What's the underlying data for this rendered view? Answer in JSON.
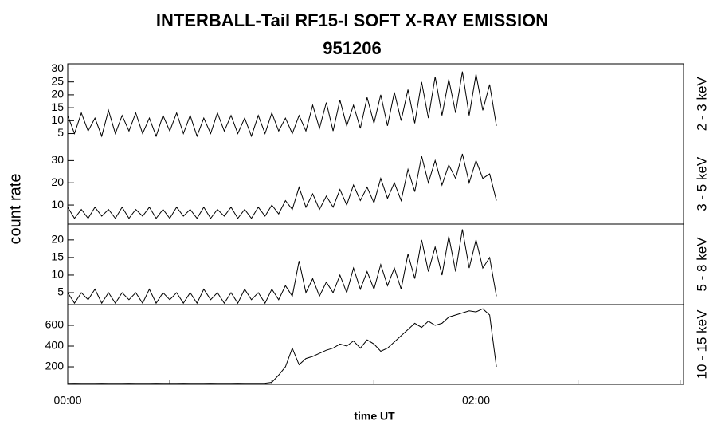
{
  "chart_data": [
    {
      "type": "line",
      "title": "INTERBALL-Tail RF15-I SOFT X-RAY EMISSION",
      "subtitle": "951206",
      "ylabel": "count rate",
      "channel": "2 - 3 keV",
      "color": "#000000",
      "x": [
        0,
        2,
        4,
        6,
        8,
        10,
        12,
        14,
        16,
        18,
        20,
        22,
        24,
        26,
        28,
        30,
        32,
        34,
        36,
        38,
        40,
        42,
        44,
        46,
        48,
        50,
        52,
        54,
        56,
        58,
        60,
        62,
        64,
        66,
        68,
        70,
        72,
        74,
        76,
        78,
        80,
        82,
        84,
        86,
        88,
        90,
        92,
        94,
        96,
        98,
        100,
        102,
        104,
        106,
        108,
        110,
        112,
        114,
        116,
        118,
        120,
        122,
        124,
        126
      ],
      "values": [
        12,
        5,
        13,
        6,
        11,
        4,
        14,
        5,
        12,
        6,
        13,
        5,
        11,
        4,
        12,
        6,
        13,
        5,
        12,
        4,
        11,
        5,
        13,
        6,
        12,
        5,
        11,
        4,
        12,
        5,
        13,
        6,
        11,
        5,
        12,
        6,
        16,
        7,
        17,
        6,
        18,
        8,
        16,
        7,
        19,
        9,
        20,
        8,
        21,
        10,
        22,
        9,
        25,
        11,
        27,
        12,
        26,
        13,
        29,
        12,
        28,
        14,
        24,
        8
      ],
      "xlim": [
        0,
        181
      ],
      "ylim": [
        1,
        32
      ],
      "yticks": [
        5,
        10,
        15,
        20,
        25,
        30
      ]
    },
    {
      "type": "line",
      "channel": "3 - 5 keV",
      "color": "#000000",
      "x": [
        0,
        2,
        4,
        6,
        8,
        10,
        12,
        14,
        16,
        18,
        20,
        22,
        24,
        26,
        28,
        30,
        32,
        34,
        36,
        38,
        40,
        42,
        44,
        46,
        48,
        50,
        52,
        54,
        56,
        58,
        60,
        62,
        64,
        66,
        68,
        70,
        72,
        74,
        76,
        78,
        80,
        82,
        84,
        86,
        88,
        90,
        92,
        94,
        96,
        98,
        100,
        102,
        104,
        106,
        108,
        110,
        112,
        114,
        116,
        118,
        120,
        122,
        124,
        126
      ],
      "values": [
        9,
        4,
        8,
        4,
        9,
        5,
        8,
        4,
        9,
        4,
        8,
        5,
        9,
        4,
        8,
        4,
        9,
        5,
        8,
        4,
        9,
        4,
        8,
        5,
        9,
        4,
        8,
        4,
        9,
        5,
        10,
        6,
        12,
        8,
        18,
        9,
        15,
        8,
        14,
        9,
        17,
        10,
        19,
        12,
        18,
        11,
        22,
        13,
        20,
        12,
        26,
        16,
        32,
        20,
        30,
        19,
        28,
        22,
        33,
        20,
        30,
        22,
        24,
        12
      ],
      "xlim": [
        0,
        181
      ],
      "ylim": [
        1.4,
        37.5
      ],
      "yticks": [
        10,
        20,
        30
      ]
    },
    {
      "type": "line",
      "channel": "5 - 8 keV",
      "color": "#000000",
      "x": [
        0,
        2,
        4,
        6,
        8,
        10,
        12,
        14,
        16,
        18,
        20,
        22,
        24,
        26,
        28,
        30,
        32,
        34,
        36,
        38,
        40,
        42,
        44,
        46,
        48,
        50,
        52,
        54,
        56,
        58,
        60,
        62,
        64,
        66,
        68,
        70,
        72,
        74,
        76,
        78,
        80,
        82,
        84,
        86,
        88,
        90,
        92,
        94,
        96,
        98,
        100,
        102,
        104,
        106,
        108,
        110,
        112,
        114,
        116,
        118,
        120,
        122,
        124,
        126
      ],
      "values": [
        5,
        2,
        5,
        3,
        6,
        2,
        5,
        2,
        5,
        3,
        5,
        2,
        6,
        2,
        5,
        3,
        5,
        2,
        5,
        2,
        6,
        3,
        5,
        2,
        5,
        2,
        6,
        3,
        5,
        2,
        6,
        3,
        7,
        4,
        14,
        5,
        9,
        4,
        8,
        5,
        10,
        5,
        12,
        6,
        11,
        6,
        13,
        7,
        12,
        6,
        16,
        9,
        20,
        11,
        18,
        10,
        21,
        11,
        23,
        12,
        20,
        12,
        15,
        4
      ],
      "xlim": [
        0,
        181
      ],
      "ylim": [
        1.6,
        24.5
      ],
      "yticks": [
        5,
        10,
        15,
        20
      ]
    },
    {
      "type": "line",
      "channel": "10 - 15 keV",
      "color": "#000000",
      "xlabel": "time UT",
      "x": [
        0,
        2,
        4,
        6,
        8,
        10,
        12,
        14,
        16,
        18,
        20,
        22,
        24,
        26,
        28,
        30,
        32,
        34,
        36,
        38,
        40,
        42,
        44,
        46,
        48,
        50,
        52,
        54,
        56,
        58,
        60,
        62,
        64,
        66,
        68,
        70,
        72,
        74,
        76,
        78,
        80,
        82,
        84,
        86,
        88,
        90,
        92,
        94,
        96,
        98,
        100,
        102,
        104,
        106,
        108,
        110,
        112,
        114,
        116,
        118,
        120,
        122,
        124,
        126
      ],
      "values": [
        40,
        42,
        40,
        41,
        40,
        42,
        40,
        41,
        40,
        42,
        40,
        41,
        40,
        42,
        40,
        41,
        40,
        42,
        40,
        41,
        40,
        42,
        40,
        41,
        40,
        42,
        40,
        41,
        40,
        42,
        50,
        120,
        200,
        380,
        220,
        280,
        300,
        330,
        360,
        380,
        420,
        400,
        450,
        380,
        460,
        420,
        350,
        380,
        440,
        500,
        560,
        620,
        580,
        640,
        600,
        620,
        680,
        700,
        720,
        740,
        730,
        760,
        700,
        200
      ],
      "xlim": [
        0,
        181
      ],
      "ylim": [
        31,
        800
      ],
      "yticks": [
        200,
        400,
        600
      ],
      "xticks": [
        {
          "value": 0,
          "label": "00:00"
        },
        {
          "value": 120,
          "label": "02:00"
        }
      ],
      "xminor": [
        30,
        60,
        90,
        150,
        180
      ]
    }
  ]
}
